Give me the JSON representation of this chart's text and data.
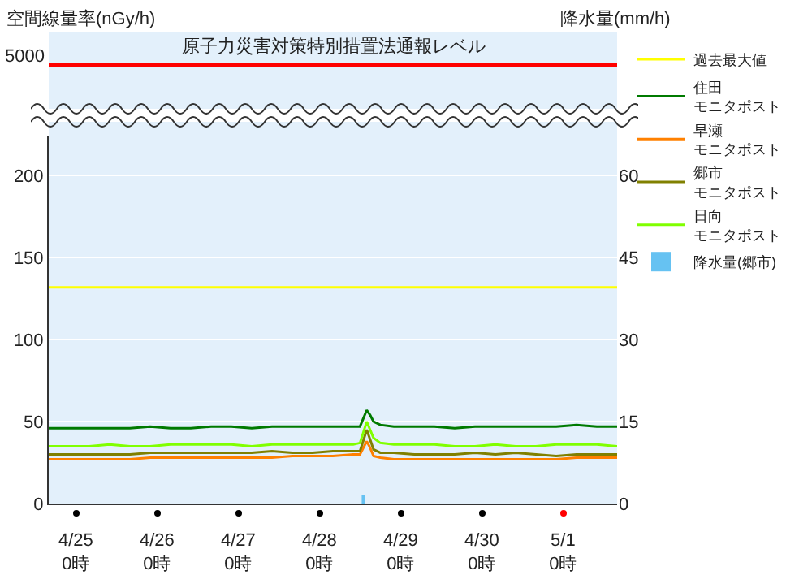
{
  "chart_data": [
    {
      "type": "other",
      "annotations": [
        "5000",
        "原子力災害対策特別措置法通報レベル"
      ]
    },
    {
      "type": "line",
      "ylabel": "空間線量率(nGy/h)",
      "y2label": "降水量(mm/h)",
      "grid": "y",
      "legend": "right",
      "x": [
        "--04-24T16:00",
        "--04-24T22:00",
        "--04-25T04:00",
        "--04-25T10:00",
        "--04-25T16:00",
        "--04-25T22:00",
        "--04-26T04:00",
        "--04-26T10:00",
        "--04-26T16:00",
        "--04-26T22:00",
        "--04-27T04:00",
        "--04-27T10:00",
        "--04-27T16:00",
        "--04-27T22:00",
        "--04-28T04:00",
        "--04-28T10:00",
        "--04-28T12:00",
        "--04-28T14:00",
        "--04-28T15:00",
        "--04-28T16:00",
        "--04-28T18:00",
        "--04-28T22:00",
        "--04-29T04:00",
        "--04-29T10:00",
        "--04-29T16:00",
        "--04-29T22:00",
        "--04-30T04:00",
        "--04-30T10:00",
        "--04-30T16:00",
        "--04-30T22:00",
        "--05-01T04:00",
        "--05-01T10:00",
        "--05-01T16:00"
      ],
      "xlim": [
        "--04-24T16:00",
        "--05-01T16:00"
      ],
      "xticks": [
        {
          "value": "--04-25T00:00",
          "label": "4/25\n0時"
        },
        {
          "value": "--04-26T00:00",
          "label": "4/26\n0時"
        },
        {
          "value": "--04-27T00:00",
          "label": "4/27\n0時"
        },
        {
          "value": "--04-28T00:00",
          "label": "4/28\n0時"
        },
        {
          "value": "--04-29T00:00",
          "label": "4/29\n0時"
        },
        {
          "value": "--04-30T00:00",
          "label": "4/30\n0時"
        },
        {
          "value": "--05-01T00:00",
          "label": "5/1\n0時"
        }
      ],
      "ylim": [
        0,
        224
      ],
      "yticks": [
        0,
        50,
        100,
        150,
        200
      ],
      "y2lim": [
        0,
        67.2
      ],
      "y2ticks": [
        0,
        15,
        30,
        45,
        60
      ],
      "series": [
        {
          "name": "過去最大値",
          "color": "#ffff00",
          "x": [
            "--04-24T16:00",
            "--05-01T16:00"
          ],
          "values": [
            132,
            132
          ]
        },
        {
          "name": "住田モニタポスト",
          "color": "#007a00",
          "values": [
            46,
            46,
            46,
            46,
            46,
            47,
            46,
            46,
            47,
            47,
            46,
            47,
            47,
            47,
            47,
            47,
            47,
            57,
            54,
            50,
            48,
            47,
            47,
            47,
            46,
            47,
            47,
            47,
            47,
            47,
            48,
            47,
            47
          ]
        },
        {
          "name": "早瀬モニタポスト",
          "color": "#ff8000",
          "values": [
            27,
            27,
            27,
            27,
            27,
            28,
            28,
            28,
            28,
            28,
            28,
            28,
            29,
            29,
            29,
            30,
            30,
            38,
            34,
            29,
            28,
            27,
            27,
            27,
            27,
            27,
            27,
            27,
            27,
            27,
            28,
            28,
            28
          ]
        },
        {
          "name": "郷市モニタポスト",
          "color": "#808000",
          "values": [
            30,
            30,
            30,
            30,
            30,
            31,
            31,
            31,
            31,
            31,
            31,
            32,
            31,
            31,
            32,
            32,
            32,
            45,
            39,
            33,
            31,
            31,
            30,
            30,
            30,
            31,
            30,
            31,
            30,
            29,
            30,
            30,
            30
          ]
        },
        {
          "name": "日向モニタポスト",
          "color": "#80ff00",
          "values": [
            35,
            35,
            35,
            36,
            35,
            35,
            36,
            36,
            36,
            36,
            35,
            36,
            36,
            36,
            36,
            36,
            37,
            50,
            45,
            40,
            37,
            36,
            36,
            36,
            35,
            35,
            36,
            35,
            35,
            36,
            36,
            36,
            35
          ]
        },
        {
          "name": "降水量(郷市)",
          "type": "bar",
          "axis": "y2",
          "color": "#66c2f2",
          "x": [
            "--04-28T13:00"
          ],
          "values": [
            1.5
          ]
        }
      ]
    }
  ]
}
